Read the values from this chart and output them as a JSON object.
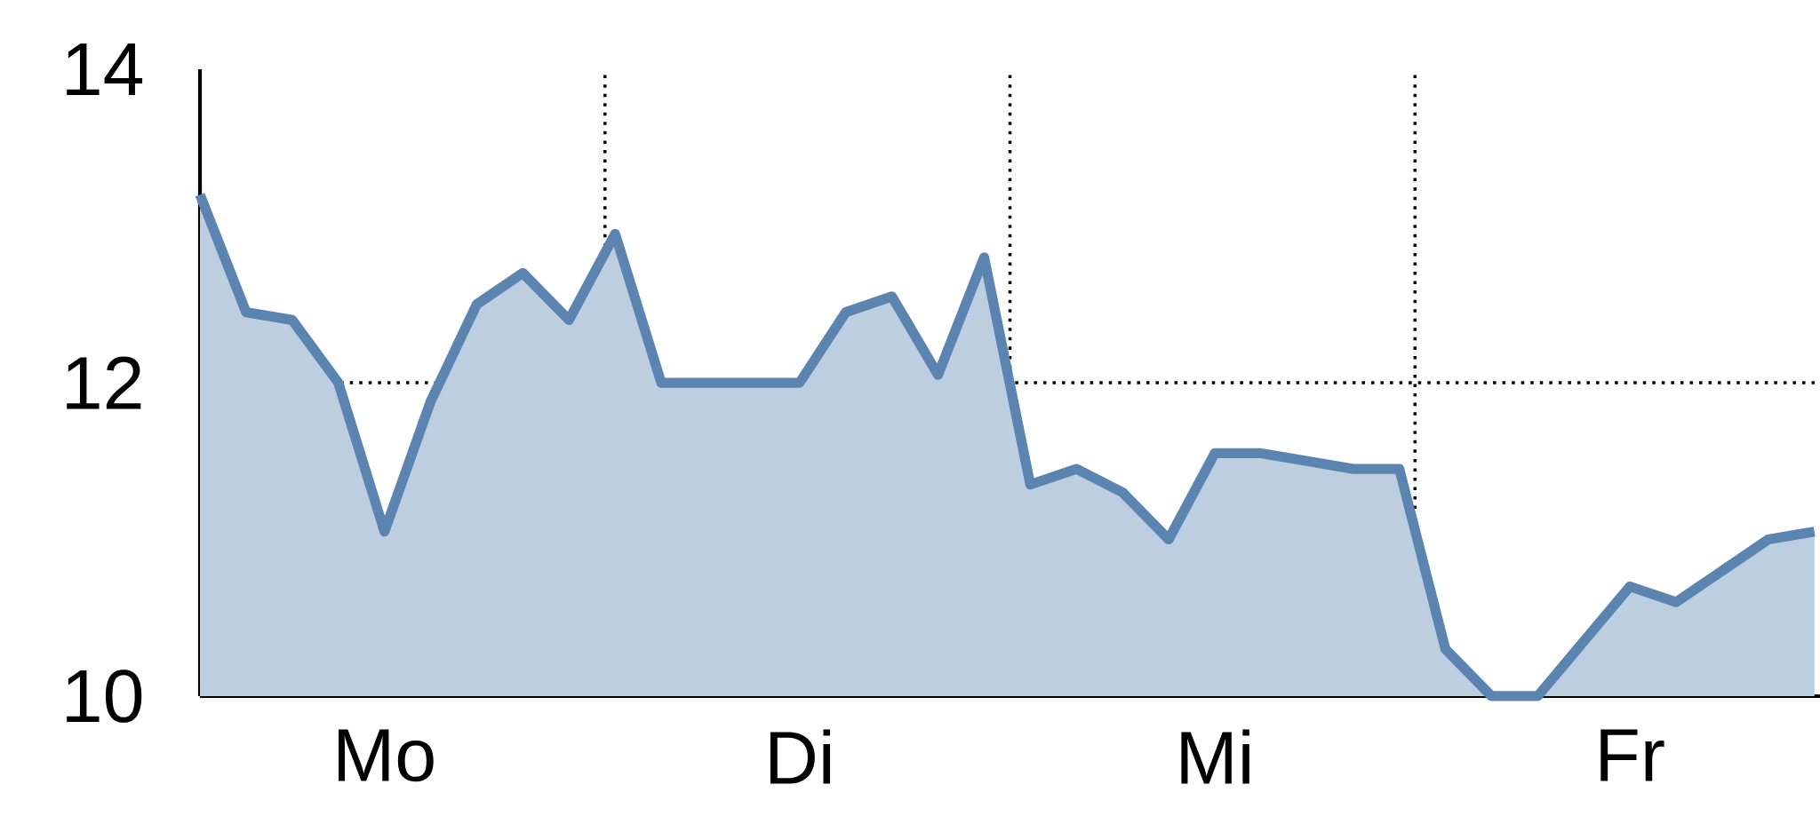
{
  "chart_data": {
    "type": "area",
    "categories": [
      null,
      null,
      null,
      null,
      "Mo",
      null,
      null,
      null,
      null,
      null,
      null,
      null,
      null,
      "Di",
      null,
      null,
      null,
      null,
      null,
      null,
      null,
      null,
      "Mi",
      null,
      null,
      null,
      null,
      null,
      null,
      null,
      null,
      "Fr",
      null,
      null,
      null,
      null
    ],
    "ylim": [
      10,
      14
    ],
    "yticks": [
      10,
      12,
      14
    ],
    "ref_lines": [
      {
        "axis": "y",
        "value": 12,
        "line_style": "dotted"
      }
    ],
    "series": [
      {
        "color": "#5b84b1",
        "values": [
          13.2,
          12.45,
          12.4,
          12.0,
          11.05,
          11.88,
          12.5,
          12.7,
          12.4,
          12.95,
          12.0,
          12.0,
          12.0,
          12.0,
          12.45,
          12.55,
          12.05,
          12.8,
          11.35,
          11.45,
          11.3,
          11.0,
          11.55,
          11.55,
          11.5,
          11.45,
          11.45,
          10.3,
          10.0,
          10.0,
          10.35,
          10.7,
          10.6,
          10.8,
          11.0,
          11.05
        ]
      }
    ]
  }
}
